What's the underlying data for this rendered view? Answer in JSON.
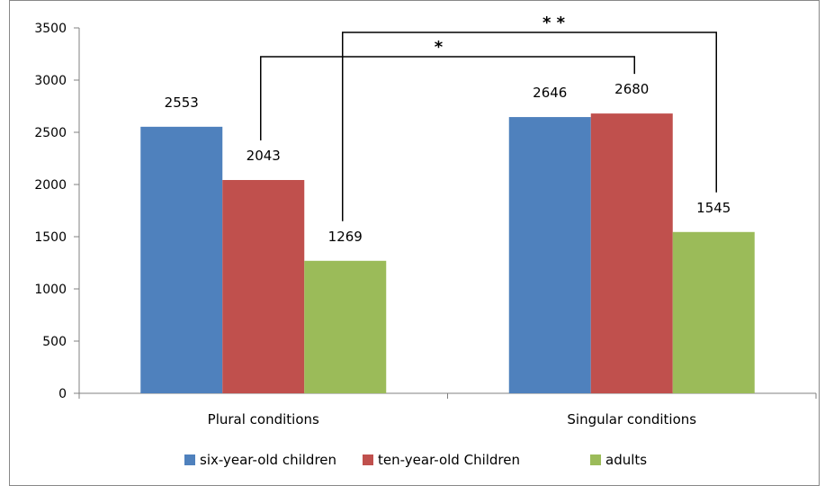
{
  "chart_data": {
    "type": "bar",
    "title": "",
    "xlabel": "",
    "ylabel": "",
    "categories": [
      "Plural conditions",
      "Singular conditions"
    ],
    "series": [
      {
        "name": "six-year-old children",
        "values": [
          2553,
          2646
        ],
        "color": "#4F81BD"
      },
      {
        "name": "ten-year-old Children",
        "values": [
          2043,
          2680
        ],
        "color": "#C0504D"
      },
      {
        "name": "adults",
        "values": [
          1269,
          1545
        ],
        "color": "#9BBB59"
      }
    ],
    "ylim": [
      0,
      3500
    ],
    "yticks": [
      0,
      500,
      1000,
      1500,
      2000,
      2500,
      3000,
      3500
    ],
    "grid": false,
    "legend_position": "bottom",
    "significance_markers": [
      {
        "label": "*",
        "from": {
          "category": 0,
          "series": 1
        },
        "to": {
          "category": 1,
          "series": 1
        }
      },
      {
        "label": "* *",
        "from": {
          "category": 0,
          "series": 2
        },
        "to": {
          "category": 1,
          "series": 2
        }
      }
    ]
  }
}
